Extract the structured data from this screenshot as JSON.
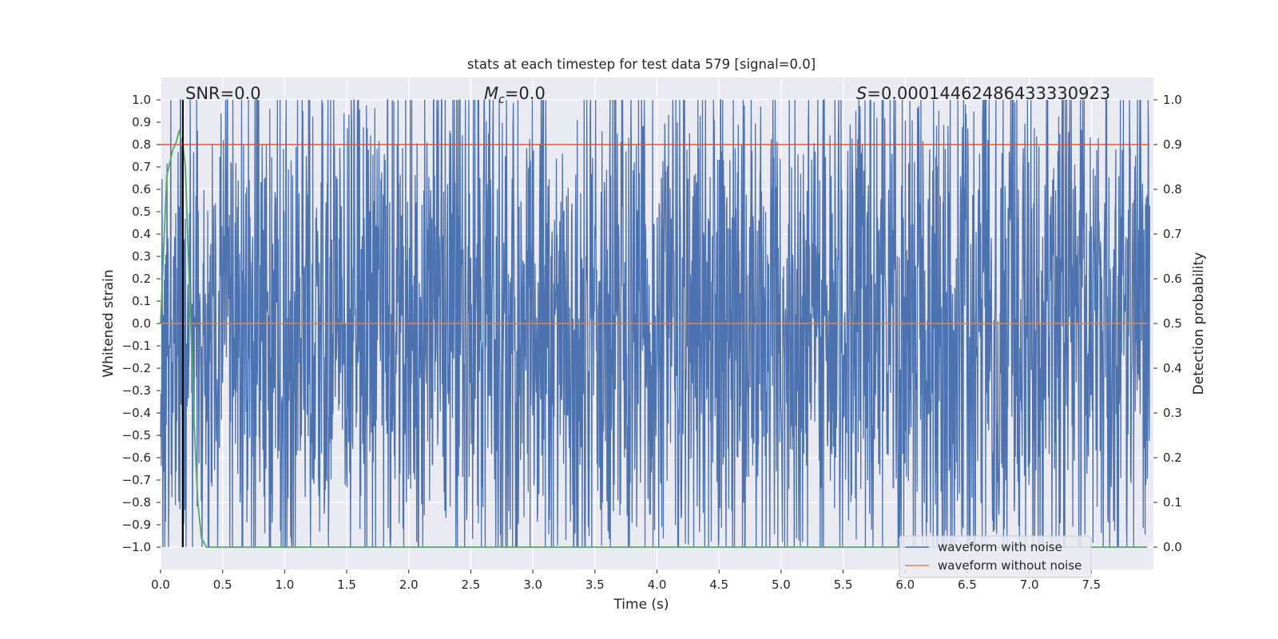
{
  "chart_data": {
    "type": "line",
    "title": "stats at each timestep for test data 579 [signal=0.0]",
    "xlabel": "Time (s)",
    "ylabel": "Whitened strain",
    "ylabel_right": "Detection probability",
    "xlim": [
      0.0,
      8.0
    ],
    "ylim": [
      -1.1,
      1.1
    ],
    "ylim_right": [
      -0.05,
      1.05
    ],
    "x_ticks": [
      "0.0",
      "0.5",
      "1.0",
      "1.5",
      "2.0",
      "2.5",
      "3.0",
      "3.5",
      "4.0",
      "4.5",
      "5.0",
      "5.5",
      "6.0",
      "6.5",
      "7.0",
      "7.5"
    ],
    "y_ticks": [
      "1.0",
      "0.9",
      "0.8",
      "0.7",
      "0.6",
      "0.5",
      "0.4",
      "0.3",
      "0.2",
      "0.1",
      "0.0",
      "−0.1",
      "−0.2",
      "−0.3",
      "−0.4",
      "−0.5",
      "−0.6",
      "−0.7",
      "−0.8",
      "−0.9",
      "−1.0"
    ],
    "y_ticks_right": [
      "1.0",
      "0.9",
      "0.8",
      "0.7",
      "0.6",
      "0.5",
      "0.4",
      "0.3",
      "0.2",
      "0.1",
      "0.0"
    ],
    "grid": true,
    "legend_position": "lower-right",
    "annotations": {
      "snr": "SNR=0.0",
      "mc_symbol": "M",
      "mc_sub": "c",
      "mc_value": "=0.0",
      "s_symbol": "S",
      "s_value": "=0.00014462486433330923"
    },
    "series": [
      {
        "name": "waveform with noise",
        "color": "#4c72b0",
        "description": "dense noisy whitened strain oscillating between about -1.0 and 1.0",
        "range": [
          -1.0,
          1.0
        ]
      },
      {
        "name": "waveform without noise",
        "color": "#dd8452",
        "values_note": "flat",
        "x": [
          0.0,
          7.95
        ],
        "y": [
          0.0,
          0.0
        ]
      },
      {
        "color": "#55a868",
        "axis": "right",
        "x": [
          0.0,
          0.05,
          0.1,
          0.12,
          0.15,
          0.18,
          0.2,
          0.22,
          0.25,
          0.27,
          0.3,
          0.33,
          0.37,
          7.95
        ],
        "y": [
          0.5,
          0.83,
          0.89,
          0.9,
          0.93,
          0.9,
          0.85,
          0.68,
          0.45,
          0.28,
          0.1,
          0.02,
          0.0,
          0.0
        ]
      }
    ],
    "vlines": [
      {
        "x": 0.18,
        "color": "#000000"
      }
    ],
    "hlines": [
      {
        "y_right": 0.9,
        "color": "#dd5533"
      }
    ]
  }
}
